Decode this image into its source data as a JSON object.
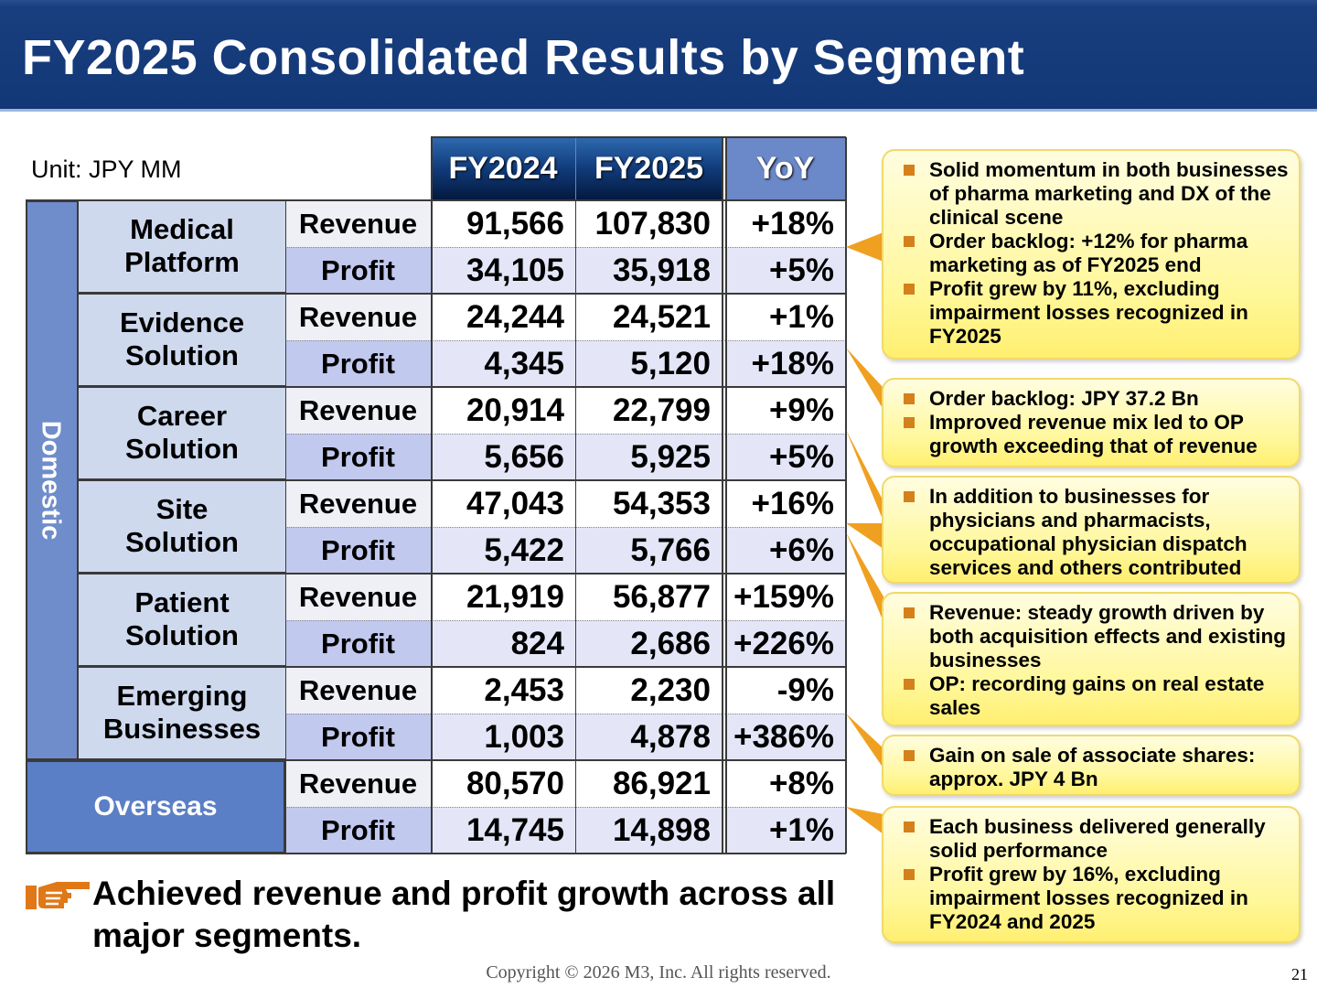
{
  "header": {
    "title": "FY2025 Consolidated Results by Segment"
  },
  "table": {
    "unit": "Unit: JPY MM",
    "columns": [
      "FY2024",
      "FY2025",
      "YoY"
    ],
    "domestic_label": "Domestic",
    "metric_labels": {
      "revenue": "Revenue",
      "profit": "Profit"
    },
    "segments": [
      {
        "name": "Medical\nPlatform",
        "revenue": [
          "91,566",
          "107,830",
          "+18%"
        ],
        "profit": [
          "34,105",
          "35,918",
          "+5%"
        ]
      },
      {
        "name": "Evidence\nSolution",
        "revenue": [
          "24,244",
          "24,521",
          "+1%"
        ],
        "profit": [
          "4,345",
          "5,120",
          "+18%"
        ]
      },
      {
        "name": "Career\nSolution",
        "revenue": [
          "20,914",
          "22,799",
          "+9%"
        ],
        "profit": [
          "5,656",
          "5,925",
          "+5%"
        ]
      },
      {
        "name": "Site\nSolution",
        "revenue": [
          "47,043",
          "54,353",
          "+16%"
        ],
        "profit": [
          "5,422",
          "5,766",
          "+6%"
        ]
      },
      {
        "name": "Patient\nSolution",
        "revenue": [
          "21,919",
          "56,877",
          "+159%"
        ],
        "profit": [
          "824",
          "2,686",
          "+226%"
        ]
      },
      {
        "name": "Emerging\nBusinesses",
        "revenue": [
          "2,453",
          "2,230",
          "-9%"
        ],
        "profit": [
          "1,003",
          "4,878",
          "+386%"
        ]
      },
      {
        "name": "Overseas",
        "revenue": [
          "80,570",
          "86,921",
          "+8%"
        ],
        "profit": [
          "14,745",
          "14,898",
          "+1%"
        ]
      }
    ]
  },
  "callouts": [
    {
      "bullets": [
        "Solid momentum in both businesses of pharma marketing and DX of the clinical scene",
        "Order backlog: +12% for pharma marketing as of FY2025 end",
        "Profit grew by 11%, excluding impairment losses recognized in FY2025"
      ]
    },
    {
      "bullets": [
        "Order backlog: JPY 37.2 Bn",
        "Improved revenue mix led to OP growth exceeding that of revenue"
      ]
    },
    {
      "bullets": [
        "In addition to businesses for physicians and pharmacists, occupational physician dispatch services and others contributed"
      ]
    },
    {
      "bullets": [
        "Revenue: steady growth driven by both acquisition effects and existing businesses",
        "OP: recording gains on real estate sales"
      ]
    },
    {
      "bullets": [
        "Gain on sale of associate shares: approx. JPY 4 Bn"
      ]
    },
    {
      "bullets": [
        "Each business delivered generally solid performance",
        "Profit grew by 16%, excluding impairment losses recognized in FY2024 and 2025"
      ]
    }
  ],
  "footer": {
    "message": "Achieved revenue and profit growth across all major segments.",
    "copyright": "Copyright © 2026  M3, Inc.  All rights reserved.",
    "page_number": "21"
  },
  "colors": {
    "header_bg": "#123878",
    "accent_orange": "#f0a020",
    "callout_yellow": "#fff799",
    "domestic_blue": "#6f8dcb"
  }
}
